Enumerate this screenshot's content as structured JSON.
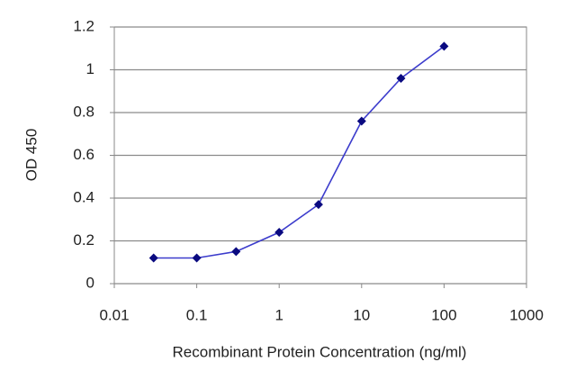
{
  "chart_data": {
    "type": "line",
    "x_label": "Recombinant Protein Concentration (ng/ml)",
    "y_label": "OD 450",
    "x": [
      0.03,
      0.1,
      0.3,
      1,
      3,
      10,
      30,
      100
    ],
    "series": [
      {
        "color": "#3c3ccc",
        "marker_color": "#0a0a80",
        "values": [
          0.12,
          0.12,
          0.15,
          0.24,
          0.37,
          0.76,
          0.96,
          1.11
        ]
      }
    ],
    "xlim": [
      0.01,
      1000
    ],
    "xticks": [
      0.01,
      0.1,
      1,
      10,
      100,
      1000
    ],
    "xscale": "log",
    "ylim": [
      0,
      1.2
    ],
    "yticks": [
      0,
      0.2,
      0.4,
      0.6,
      0.8,
      1,
      1.2
    ],
    "grid": true
  }
}
